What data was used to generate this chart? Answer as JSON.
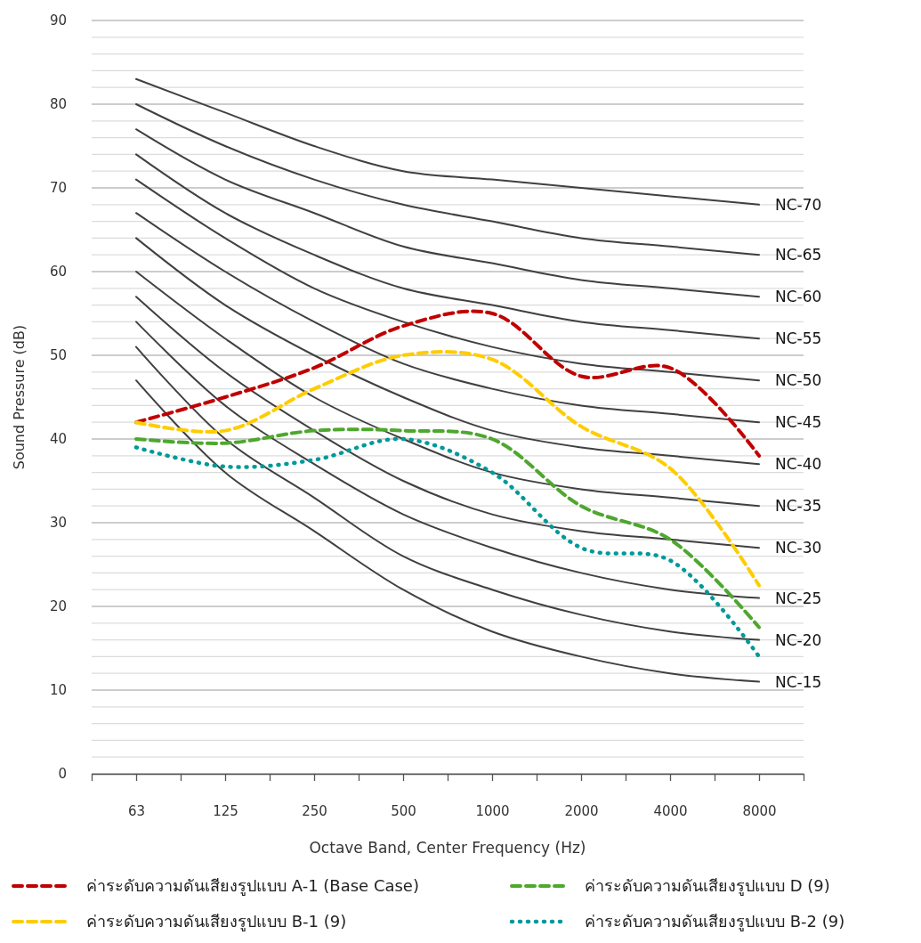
{
  "chart_data": {
    "type": "line",
    "xlabel": "Octave Band, Center Frequency (Hz)",
    "ylabel": "Sound Pressure (dB)",
    "categories": [
      "63",
      "125",
      "250",
      "500",
      "1000",
      "2000",
      "4000",
      "8000"
    ],
    "ylim": [
      0,
      90
    ],
    "yticks": [
      0,
      {
        "value": 2,
        "label": null
      },
      {
        "value": 4,
        "label": null
      },
      {
        "value": 6,
        "label": null
      },
      {
        "value": 8,
        "label": null
      },
      10,
      {
        "value": 12,
        "label": null
      },
      {
        "value": 14,
        "label": null
      },
      {
        "value": 16,
        "label": null
      },
      {
        "value": 18,
        "label": null
      },
      20,
      {
        "value": 22,
        "label": null
      },
      {
        "value": 24,
        "label": null
      },
      {
        "value": 26,
        "label": null
      },
      {
        "value": 28,
        "label": null
      },
      30,
      {
        "value": 32,
        "label": null
      },
      {
        "value": 34,
        "label": null
      },
      {
        "value": 36,
        "label": null
      },
      {
        "value": 38,
        "label": null
      },
      40,
      {
        "value": 42,
        "label": null
      },
      {
        "value": 44,
        "label": null
      },
      {
        "value": 46,
        "label": null
      },
      {
        "value": 48,
        "label": null
      },
      50,
      {
        "value": 52,
        "label": null
      },
      {
        "value": 54,
        "label": null
      },
      {
        "value": 56,
        "label": null
      },
      {
        "value": 58,
        "label": null
      },
      60,
      {
        "value": 62,
        "label": null
      },
      {
        "value": 64,
        "label": null
      },
      {
        "value": 66,
        "label": null
      },
      {
        "value": 68,
        "label": null
      },
      70,
      {
        "value": 72,
        "label": null
      },
      {
        "value": 74,
        "label": null
      },
      {
        "value": 76,
        "label": null
      },
      {
        "value": 78,
        "label": null
      },
      80,
      {
        "value": 82,
        "label": null
      },
      {
        "value": 84,
        "label": null
      },
      {
        "value": 86,
        "label": null
      },
      {
        "value": 88,
        "label": null
      },
      90
    ],
    "grid": "y",
    "legend": "bottom",
    "series": [
      {
        "name": "NC-70",
        "color": "#404040",
        "line_style": "solid",
        "values": [
          83,
          79,
          75,
          72,
          71,
          70,
          69,
          68
        ]
      },
      {
        "name": "NC-65",
        "color": "#404040",
        "line_style": "solid",
        "values": [
          80,
          75,
          71,
          68,
          66,
          64,
          63,
          62
        ]
      },
      {
        "name": "NC-60",
        "color": "#404040",
        "line_style": "solid",
        "values": [
          77,
          71,
          67,
          63,
          61,
          59,
          58,
          57
        ]
      },
      {
        "name": "NC-55",
        "color": "#404040",
        "line_style": "solid",
        "values": [
          74,
          67,
          62,
          58,
          56,
          54,
          53,
          52
        ]
      },
      {
        "name": "NC-50",
        "color": "#404040",
        "line_style": "solid",
        "values": [
          71,
          64,
          58,
          54,
          51,
          49,
          48,
          47
        ]
      },
      {
        "name": "NC-45",
        "color": "#404040",
        "line_style": "solid",
        "values": [
          67,
          60,
          54,
          49,
          46,
          44,
          43,
          42
        ]
      },
      {
        "name": "NC-40",
        "color": "#404040",
        "line_style": "solid",
        "values": [
          64,
          56,
          50,
          45,
          41,
          39,
          38,
          37
        ]
      },
      {
        "name": "NC-35",
        "color": "#404040",
        "line_style": "solid",
        "values": [
          60,
          52,
          45,
          40,
          36,
          34,
          33,
          32
        ]
      },
      {
        "name": "NC-30",
        "color": "#404040",
        "line_style": "solid",
        "values": [
          57,
          48,
          41,
          35,
          31,
          29,
          28,
          27
        ]
      },
      {
        "name": "NC-25",
        "color": "#404040",
        "line_style": "solid",
        "values": [
          54,
          44,
          37,
          31,
          27,
          24,
          22,
          21
        ]
      },
      {
        "name": "NC-20",
        "color": "#404040",
        "line_style": "solid",
        "values": [
          51,
          40,
          33,
          26,
          22,
          19,
          17,
          16
        ]
      },
      {
        "name": "NC-15",
        "color": "#404040",
        "line_style": "solid",
        "values": [
          47,
          36,
          29,
          22,
          17,
          14,
          12,
          11
        ]
      },
      {
        "name": "ค่าระดับความดันเสียงรูปแบบ A-1 (Base Case)",
        "color": "#c00000",
        "line_style": "dashed",
        "values": [
          42,
          45,
          48.5,
          53.5,
          55,
          47.5,
          48.5,
          38
        ]
      },
      {
        "name": "ค่าระดับความดันเสียงรูปแบบ D (9)",
        "color": "#4ea72e",
        "line_style": "dashed",
        "values": [
          40,
          39.5,
          41,
          41,
          40,
          32,
          28,
          17.5
        ]
      },
      {
        "name": "ค่าระดับความดันเสียงรูปแบบ B-1 (9)",
        "color": "#ffcc00",
        "line_style": "dashed",
        "values": [
          42,
          41,
          46,
          50,
          49.5,
          41.5,
          36.5,
          22.5
        ]
      },
      {
        "name": "ค่าระดับความดันเสียงรูปแบบ B-2 (9)",
        "color": "#00999a",
        "line_style": "dotted",
        "values": [
          39,
          36.7,
          37.5,
          40,
          36,
          27,
          25.5,
          14
        ]
      }
    ]
  }
}
